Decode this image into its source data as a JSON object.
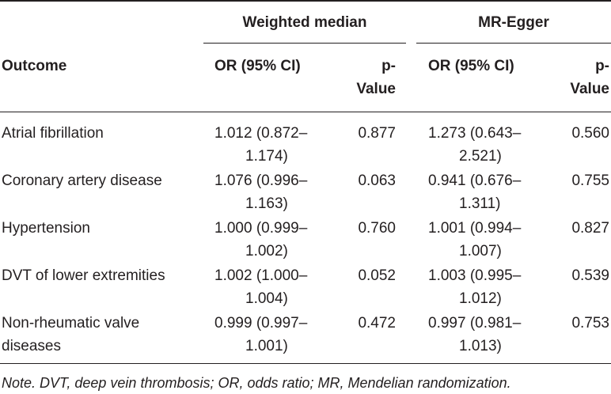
{
  "header": {
    "group_weighted": "Weighted median",
    "group_egger": "MR-Egger",
    "outcome": "Outcome",
    "or_ci_weighted": "OR (95% CI)",
    "pvalue_weighted_l1": "p-",
    "pvalue_weighted_l2": "Value",
    "or_ci_egger": "OR (95% CI)",
    "pvalue_egger_l1": "p-",
    "pvalue_egger_l2": "Value"
  },
  "rows": [
    {
      "outcome_l1": "Atrial fibrillation",
      "outcome_l2": "",
      "wm_or_l1": "1.012 (0.872–",
      "wm_or_l2": "1.174)",
      "wm_p": "0.877",
      "eg_or_l1": "1.273 (0.643–",
      "eg_or_l2": "2.521)",
      "eg_p": "0.560"
    },
    {
      "outcome_l1": "Coronary artery disease",
      "outcome_l2": "",
      "wm_or_l1": "1.076 (0.996–",
      "wm_or_l2": "1.163)",
      "wm_p": "0.063",
      "eg_or_l1": "0.941 (0.676–",
      "eg_or_l2": "1.311)",
      "eg_p": "0.755"
    },
    {
      "outcome_l1": "Hypertension",
      "outcome_l2": "",
      "wm_or_l1": "1.000 (0.999–",
      "wm_or_l2": "1.002)",
      "wm_p": "0.760",
      "eg_or_l1": "1.001 (0.994–",
      "eg_or_l2": "1.007)",
      "eg_p": "0.827"
    },
    {
      "outcome_l1": "DVT of lower extremities",
      "outcome_l2": "",
      "wm_or_l1": "1.002 (1.000–",
      "wm_or_l2": "1.004)",
      "wm_p": "0.052",
      "eg_or_l1": "1.003 (0.995–",
      "eg_or_l2": "1.012)",
      "eg_p": "0.539"
    },
    {
      "outcome_l1": "Non-rheumatic valve",
      "outcome_l2": "diseases",
      "wm_or_l1": "0.999 (0.997–",
      "wm_or_l2": "1.001)",
      "wm_p": "0.472",
      "eg_or_l1": "0.997 (0.981–",
      "eg_or_l2": "1.013)",
      "eg_p": "0.753"
    }
  ],
  "note": "Note. DVT, deep vein thrombosis; OR, odds ratio; MR, Mendelian randomization."
}
